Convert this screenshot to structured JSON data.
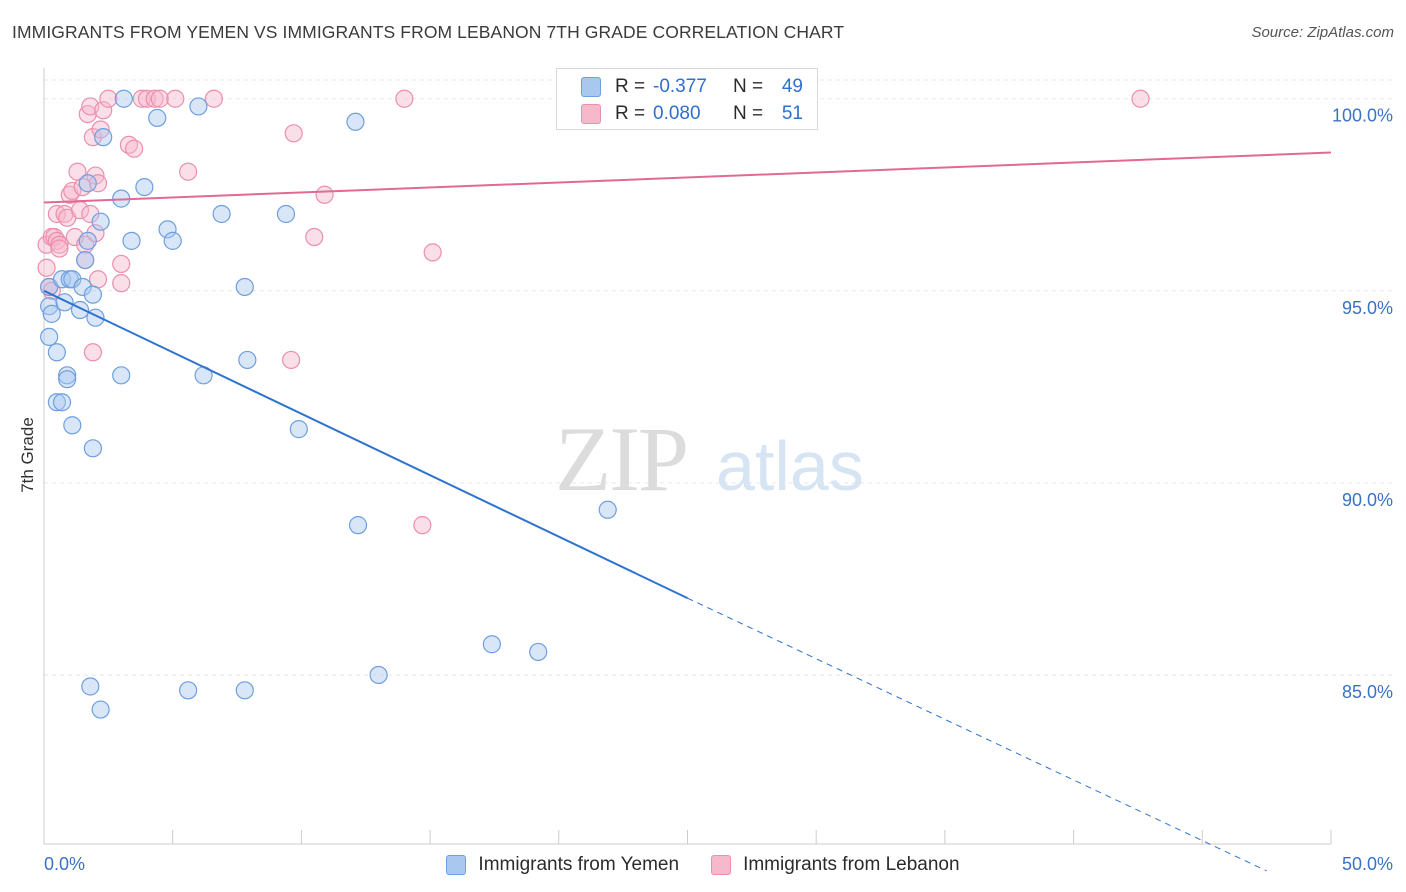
{
  "title": "IMMIGRANTS FROM YEMEN VS IMMIGRANTS FROM LEBANON 7TH GRADE CORRELATION CHART",
  "source": "Source: ZipAtlas.com",
  "watermark": {
    "zip": "ZIP",
    "atlas": "atlas"
  },
  "colors": {
    "yemen_fill": "#a9c8f0",
    "yemen_stroke": "#6e9fdf",
    "yemen_line": "#2e73d0",
    "lebanon_fill": "#f6b8cb",
    "lebanon_stroke": "#ec8fac",
    "lebanon_line": "#e06a93",
    "axis_text": "#3a72c6",
    "grid": "#e6e6e6"
  },
  "stats": {
    "yemen": {
      "r_label": "R =",
      "r": "-0.377",
      "n_label": "N =",
      "n": "49"
    },
    "lebanon": {
      "r_label": "R =",
      "r": "0.080",
      "n_label": "N =",
      "n": "51"
    }
  },
  "legend": {
    "yemen": "Immigrants from Yemen",
    "lebanon": "Immigrants from Lebanon"
  },
  "chart_data": {
    "type": "scatter",
    "title": "IMMIGRANTS FROM YEMEN VS IMMIGRANTS FROM LEBANON 7TH GRADE CORRELATION CHART",
    "xlabel": "",
    "ylabel": "7th Grade",
    "xlim": [
      0,
      50
    ],
    "ylim": [
      80.6,
      100.8
    ],
    "x_tick_labels": [
      "0.0%",
      "50.0%"
    ],
    "y_ticks": [
      85,
      90,
      95,
      100
    ],
    "y_tick_labels": [
      "85.0%",
      "90.0%",
      "95.0%",
      "100.0%"
    ],
    "grid": true,
    "series": [
      {
        "name": "Immigrants from Yemen",
        "points": [
          [
            0.2,
            95.1
          ],
          [
            0.2,
            94.6
          ],
          [
            0.3,
            94.4
          ],
          [
            0.2,
            93.8
          ],
          [
            0.5,
            93.4
          ],
          [
            0.5,
            92.1
          ],
          [
            0.7,
            92.1
          ],
          [
            0.9,
            92.8
          ],
          [
            0.9,
            92.7
          ],
          [
            1.1,
            91.5
          ],
          [
            0.7,
            95.3
          ],
          [
            0.8,
            94.7
          ],
          [
            1.0,
            95.3
          ],
          [
            1.1,
            95.3
          ],
          [
            1.4,
            94.5
          ],
          [
            1.5,
            95.1
          ],
          [
            1.6,
            95.8
          ],
          [
            1.7,
            96.3
          ],
          [
            1.9,
            94.9
          ],
          [
            2.0,
            94.3
          ],
          [
            1.9,
            90.9
          ],
          [
            2.2,
            96.8
          ],
          [
            2.3,
            99.0
          ],
          [
            1.7,
            97.8
          ],
          [
            3.0,
            97.4
          ],
          [
            3.1,
            100.0
          ],
          [
            3.4,
            96.3
          ],
          [
            3.9,
            97.7
          ],
          [
            4.4,
            99.5
          ],
          [
            4.8,
            96.6
          ],
          [
            5.0,
            96.3
          ],
          [
            6.0,
            99.8
          ],
          [
            6.9,
            97.0
          ],
          [
            9.4,
            97.0
          ],
          [
            7.8,
            95.1
          ],
          [
            7.9,
            93.2
          ],
          [
            3.0,
            92.8
          ],
          [
            6.2,
            92.8
          ],
          [
            9.9,
            91.4
          ],
          [
            12.1,
            99.4
          ],
          [
            12.2,
            88.9
          ],
          [
            21.9,
            89.3
          ],
          [
            17.4,
            85.8
          ],
          [
            19.2,
            85.6
          ],
          [
            13.0,
            85.0
          ],
          [
            1.8,
            84.7
          ],
          [
            5.6,
            84.6
          ],
          [
            7.8,
            84.6
          ],
          [
            2.2,
            84.1
          ]
        ]
      },
      {
        "name": "Immigrants from Lebanon",
        "points": [
          [
            0.1,
            96.2
          ],
          [
            0.1,
            95.6
          ],
          [
            0.2,
            95.1
          ],
          [
            0.3,
            96.4
          ],
          [
            0.4,
            96.4
          ],
          [
            0.5,
            96.3
          ],
          [
            0.6,
            96.2
          ],
          [
            0.5,
            97.0
          ],
          [
            0.6,
            96.1
          ],
          [
            0.8,
            97.0
          ],
          [
            0.9,
            96.9
          ],
          [
            1.0,
            97.5
          ],
          [
            1.1,
            97.6
          ],
          [
            1.2,
            96.4
          ],
          [
            1.3,
            98.1
          ],
          [
            1.4,
            97.1
          ],
          [
            1.5,
            97.7
          ],
          [
            1.6,
            96.2
          ],
          [
            1.6,
            95.8
          ],
          [
            1.7,
            99.6
          ],
          [
            1.8,
            99.8
          ],
          [
            1.9,
            99.0
          ],
          [
            2.0,
            98.0
          ],
          [
            2.1,
            97.8
          ],
          [
            2.0,
            96.5
          ],
          [
            2.1,
            95.3
          ],
          [
            2.2,
            99.2
          ],
          [
            2.3,
            99.7
          ],
          [
            2.5,
            100.0
          ],
          [
            1.8,
            97.0
          ],
          [
            1.9,
            93.4
          ],
          [
            3.0,
            95.7
          ],
          [
            3.0,
            95.2
          ],
          [
            3.3,
            98.8
          ],
          [
            3.5,
            98.7
          ],
          [
            3.8,
            100.0
          ],
          [
            4.0,
            100.0
          ],
          [
            4.3,
            100.0
          ],
          [
            4.5,
            100.0
          ],
          [
            5.1,
            100.0
          ],
          [
            5.6,
            98.1
          ],
          [
            6.6,
            100.0
          ],
          [
            9.7,
            99.1
          ],
          [
            9.6,
            93.2
          ],
          [
            10.5,
            96.4
          ],
          [
            10.9,
            97.5
          ],
          [
            14.0,
            100.0
          ],
          [
            14.7,
            88.9
          ],
          [
            15.1,
            96.0
          ],
          [
            42.6,
            100.0
          ],
          [
            0.3,
            95.0
          ]
        ]
      }
    ],
    "trend_lines": [
      {
        "series": "Immigrants from Yemen",
        "x0": 0,
        "y0": 95.0,
        "x1": 25,
        "y1": 87.0,
        "dashed_to_x": 47.5,
        "dashed_to_y": 79.9,
        "r": -0.377,
        "n": 49
      },
      {
        "series": "Immigrants from Lebanon",
        "x0": 0,
        "y0": 97.3,
        "x1": 50,
        "y1": 98.6,
        "r": 0.08,
        "n": 51
      }
    ]
  }
}
